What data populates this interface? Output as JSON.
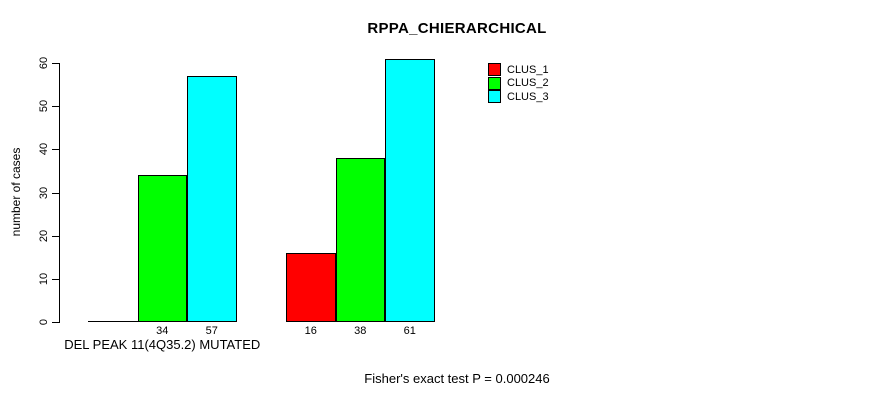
{
  "chart_data": {
    "type": "bar",
    "title": "RPPA_CHIERARCHICAL",
    "ylabel": "number of cases",
    "xlabel": "",
    "ylim": [
      0,
      60
    ],
    "yticks": [
      0,
      10,
      20,
      30,
      40,
      50,
      60
    ],
    "grid": false,
    "legend_position": "top-right-inside",
    "series": [
      {
        "name": "CLUS_1",
        "color": "#ff0000"
      },
      {
        "name": "CLUS_2",
        "color": "#00ff00"
      },
      {
        "name": "CLUS_3",
        "color": "#00ffff"
      }
    ],
    "groups": [
      {
        "label": "DEL PEAK 11(4Q35.2) MUTATED",
        "values": [
          0,
          34,
          57
        ],
        "bar_labels": [
          "",
          "34",
          "57"
        ]
      },
      {
        "label": "",
        "values": [
          16,
          38,
          61
        ],
        "bar_labels": [
          "16",
          "38",
          "61"
        ]
      }
    ],
    "annotation": "Fisher's exact test P = 0.000246"
  }
}
